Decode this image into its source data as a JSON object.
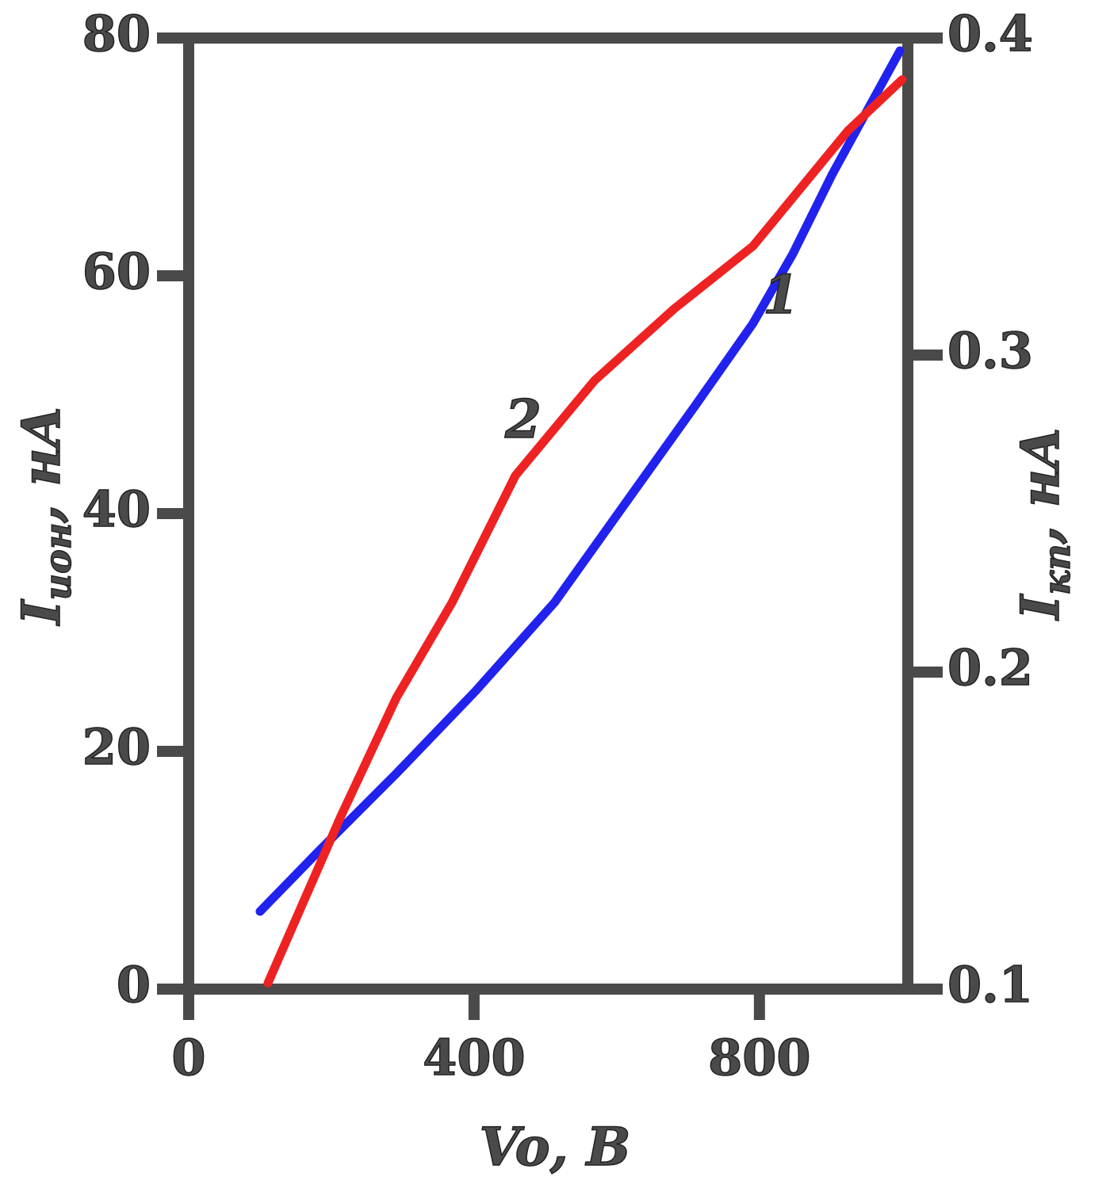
{
  "chart_data": {
    "type": "line",
    "xlabel": "Vo, B",
    "ylabel": {
      "symbol": "I",
      "subscript": "ион",
      "unit": ", нА"
    },
    "y2label": {
      "symbol": "I",
      "subscript": "кп",
      "unit": ", нА"
    },
    "xlim": [
      0,
      1008
    ],
    "xticks": [
      0,
      400,
      800
    ],
    "ylim": [
      0,
      80
    ],
    "yticks": [
      0,
      20,
      40,
      60,
      80
    ],
    "y2lim": [
      0.1,
      0.4
    ],
    "y2ticks": [
      0.1,
      0.2,
      0.3,
      0.4
    ],
    "series": [
      {
        "name": "1",
        "color": "#2222ee",
        "axis": "y2",
        "x": [
          100,
          180,
          291,
          402,
          513,
          624,
          713,
          791,
          847,
          902,
          958,
          997
        ],
        "values": [
          0.1245,
          0.143,
          0.168,
          0.194,
          0.222,
          0.257,
          0.285,
          0.31,
          0.332,
          0.357,
          0.38,
          0.396
        ]
      },
      {
        "name": "2",
        "color": "#ee2222",
        "x": [
          111,
          213,
          291,
          369,
          458,
          569,
          680,
          791,
          924,
          1000
        ],
        "values": [
          0.5,
          14.5,
          24.5,
          32.5,
          43.2,
          51.2,
          57.2,
          62.5,
          72.2,
          76.5
        ]
      }
    ]
  }
}
